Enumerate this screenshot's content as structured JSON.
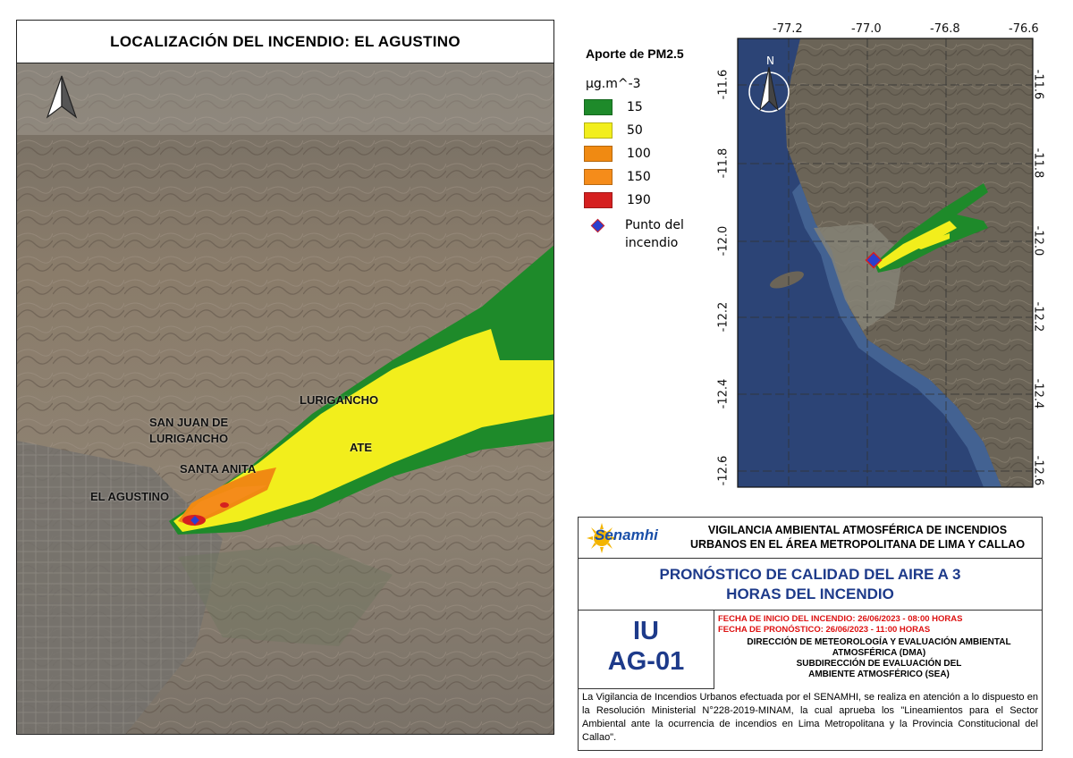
{
  "main_map": {
    "title": "LOCALIZACIÓN DEL INCENDIO: EL AGUSTINO",
    "places": {
      "lurigancho": "LURIGANCHO",
      "sjl_line1": "SAN JUAN DE",
      "sjl_line2": "LURIGANCHO",
      "ate": "ATE",
      "santa_anita": "SANTA ANITA",
      "el_agustino": "EL AGUSTINO"
    }
  },
  "legend": {
    "title": "Aporte de PM2.5",
    "unit": "µg.m^-3",
    "items": [
      {
        "label": "15",
        "color": "#1e8a2a"
      },
      {
        "label": "50",
        "color": "#f2ee1c"
      },
      {
        "label": "100",
        "color": "#f08a12"
      },
      {
        "label": "150",
        "color": "#f58c1a"
      },
      {
        "label": "190",
        "color": "#d52020"
      }
    ],
    "fire_point_line1": "Punto del",
    "fire_point_line2": "incendio",
    "fire_point_color": "#2a3fcf"
  },
  "inset_map": {
    "north_label": "N",
    "lon_labels": [
      "-77.2",
      "-77.0",
      "-76.8",
      "-76.6"
    ],
    "lat_labels": [
      "-11.6",
      "-11.8",
      "-12.0",
      "-12.2",
      "-12.4",
      "-12.6"
    ]
  },
  "panel": {
    "logo_text": "Senamhi",
    "header_line1": "VIGILANCIA AMBIENTAL ATMOSFÉRICA DE INCENDIOS",
    "header_line2": "URBANOS EN EL ÁREA METROPOLITANA DE LIMA Y CALLAO",
    "title_line1": "PRONÓSTICO DE CALIDAD DEL AIRE A 3",
    "title_line2": "HORAS DEL INCENDIO",
    "code_line1": "IU",
    "code_line2": "AG-01",
    "start_date": "FECHA DE INICIO DEL INCENDIO: 26/06/2023 - 08:00 HORAS",
    "forecast_date": "FECHA DE PRONÓSTICO: 26/06/2023 - 11:00 HORAS",
    "dma_line1": "DIRECCIÓN DE METEOROLOGÍA Y EVALUACIÓN AMBIENTAL",
    "dma_line2": "ATMOSFÉRICA (DMA)",
    "sea_line1": "SUBDIRECCIÓN DE EVALUACIÓN DEL",
    "sea_line2": "AMBIENTE ATMOSFÉRICO (SEA)",
    "description": "La Vigilancia de Incendios Urbanos efectuada por el SENAMHI, se realiza en atención a lo dispuesto en la Resolución Ministerial N°228-2019-MINAM, la cual aprueba los \"Lineamientos para el Sector Ambiental ante la ocurrencia de incendios en Lima Metropolitana y la Provincia Constitucional del Callao\"."
  }
}
